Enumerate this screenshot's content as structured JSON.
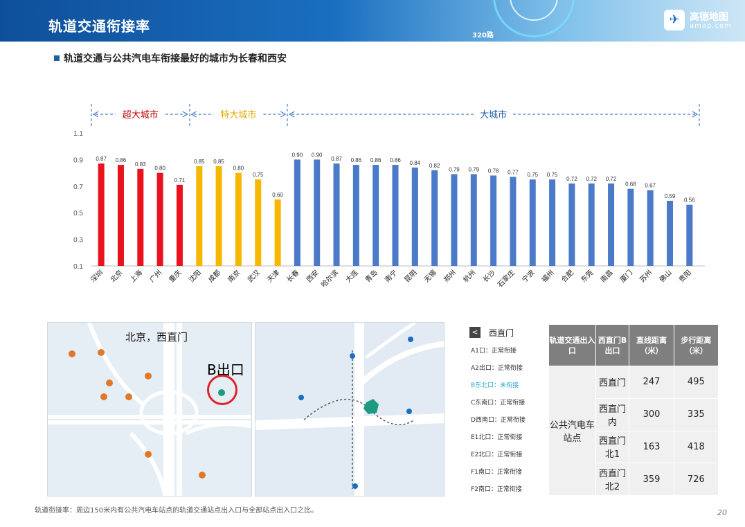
{
  "header": {
    "title": "轨道交通衔接率",
    "route_label": "320路",
    "logo_name": "高德地图",
    "logo_url": "amap.com",
    "logo_icon": "paper-plane-icon"
  },
  "subtitle": "轨道交通与公共汽电车衔接最好的城市为长春和西安",
  "chart_data": {
    "type": "bar",
    "ylim": [
      0.1,
      1.1
    ],
    "yticks": [
      "1.1",
      "0.9",
      "0.7",
      "0.5",
      "0.3",
      "0.1"
    ],
    "groups": [
      {
        "label": "超大城市",
        "color": "#e8131d",
        "label_color": "#c00000"
      },
      {
        "label": "特大城市",
        "color": "#f5b700",
        "label_color": "#e0a800"
      },
      {
        "label": "大城市",
        "color": "#4a7ac8",
        "label_color": "#1f5fa8"
      }
    ],
    "categories": [
      "深圳",
      "北京",
      "上海",
      "广州",
      "重庆",
      "沈阳",
      "成都",
      "南京",
      "武汉",
      "天津",
      "长春",
      "西安",
      "哈尔滨",
      "大连",
      "青岛",
      "南宁",
      "昆明",
      "无锡",
      "郑州",
      "杭州",
      "长沙",
      "石家庄",
      "宁波",
      "福州",
      "合肥",
      "东莞",
      "南昌",
      "厦门",
      "苏州",
      "佛山",
      "贵阳"
    ],
    "values": [
      0.87,
      0.86,
      0.83,
      0.8,
      0.71,
      0.85,
      0.85,
      0.8,
      0.75,
      0.6,
      0.9,
      0.9,
      0.87,
      0.86,
      0.86,
      0.86,
      0.84,
      0.82,
      0.79,
      0.79,
      0.78,
      0.77,
      0.75,
      0.75,
      0.72,
      0.72,
      0.72,
      0.68,
      0.67,
      0.59,
      0.56
    ],
    "value_labels": [
      "0.87",
      "0.86",
      "0.83",
      "0.80",
      "0.71",
      "0.85",
      "0.85",
      "0.80",
      "0.75",
      "0.60",
      "0.90",
      "0.90",
      "0.87",
      "0.86",
      "0.86",
      "0.86",
      "0.84",
      "0.82",
      "0.79",
      "0.79",
      "0.78",
      "0.77",
      "0.75",
      "0.75",
      "0.72",
      "0.72",
      "0.72",
      "0.68",
      "0.67",
      "0.59",
      "0.56"
    ],
    "group_index": [
      0,
      0,
      0,
      0,
      0,
      1,
      1,
      1,
      1,
      1,
      2,
      2,
      2,
      2,
      2,
      2,
      2,
      2,
      2,
      2,
      2,
      2,
      2,
      2,
      2,
      2,
      2,
      2,
      2,
      2,
      2
    ]
  },
  "map_left": {
    "label": "北京，西直门",
    "exit_label": "B出口"
  },
  "exit_panel": {
    "back_icon": "chevron-left-icon",
    "title": "西直门",
    "items": [
      {
        "text": "A1口：正常衔接",
        "highlight": false
      },
      {
        "text": "A2出口：正常衔接",
        "highlight": false
      },
      {
        "text": "B东北口：未衔接",
        "highlight": true
      },
      {
        "text": "C东南口：正常衔接",
        "highlight": false
      },
      {
        "text": "D西南口：正常衔接",
        "highlight": false
      },
      {
        "text": "E1北口：正常衔接",
        "highlight": false
      },
      {
        "text": "E2北口：正常衔接",
        "highlight": false
      },
      {
        "text": "F1南口：正常衔接",
        "highlight": false
      },
      {
        "text": "F2南口：正常衔接",
        "highlight": false
      }
    ]
  },
  "table": {
    "headers": [
      "轨道交通出入口",
      "西直门B出口",
      "直线距离（米）",
      "步行距离（米）"
    ],
    "row_group": "公共汽电车站点",
    "rows": [
      {
        "name": "西直门",
        "straight": "247",
        "walk": "495"
      },
      {
        "name": "西直门内",
        "straight": "300",
        "walk": "335"
      },
      {
        "name": "西直门北1",
        "straight": "163",
        "walk": "418"
      },
      {
        "name": "西直门北2",
        "straight": "359",
        "walk": "726"
      }
    ]
  },
  "footnote": "轨道衔接率：周边150米内有公共汽电车站点的轨道交通站点出入口与全部站点出入口之比。",
  "page_number": "20"
}
